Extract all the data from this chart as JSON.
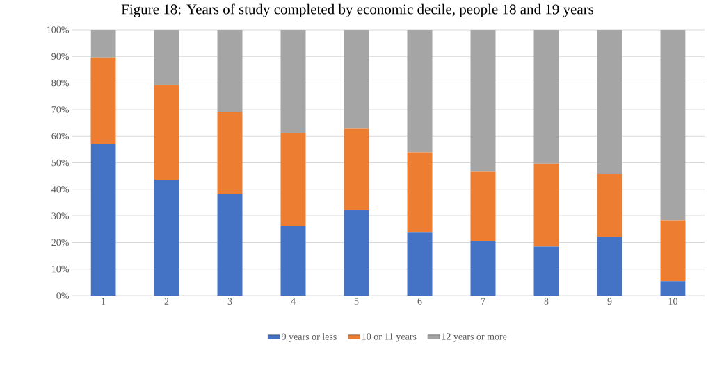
{
  "chart_data": {
    "type": "bar",
    "stacked": true,
    "title": "Figure 18: Years of study completed by economic decile, people 18 and 19 years",
    "categories": [
      "1",
      "2",
      "3",
      "4",
      "5",
      "6",
      "7",
      "8",
      "9",
      "10"
    ],
    "series": [
      {
        "name": "9 years or less",
        "color": "#4472c4",
        "values": [
          57.1,
          43.6,
          38.4,
          26.4,
          32.1,
          23.7,
          20.5,
          18.4,
          22.1,
          5.4
        ]
      },
      {
        "name": "10 or 11 years",
        "color": "#ed7d31",
        "values": [
          32.5,
          35.5,
          30.8,
          34.9,
          30.7,
          30.2,
          26.1,
          31.3,
          23.6,
          22.9
        ]
      },
      {
        "name": "12 years or more",
        "color": "#a5a5a5",
        "values": [
          10.4,
          20.9,
          30.8,
          38.7,
          37.2,
          46.1,
          53.4,
          50.3,
          54.3,
          71.7
        ]
      }
    ],
    "ylim": [
      0,
      100
    ],
    "yticks": [
      {
        "value": 0,
        "label": "0%"
      },
      {
        "value": 10,
        "label": "10%"
      },
      {
        "value": 20,
        "label": "20%"
      },
      {
        "value": 30,
        "label": "30%"
      },
      {
        "value": 40,
        "label": "40%"
      },
      {
        "value": 50,
        "label": "50%"
      },
      {
        "value": 60,
        "label": "60%"
      },
      {
        "value": 70,
        "label": "70%"
      },
      {
        "value": 80,
        "label": "80%"
      },
      {
        "value": 90,
        "label": "90%"
      },
      {
        "value": 100,
        "label": "100%"
      }
    ],
    "grid": "y",
    "legend": "bottom"
  }
}
